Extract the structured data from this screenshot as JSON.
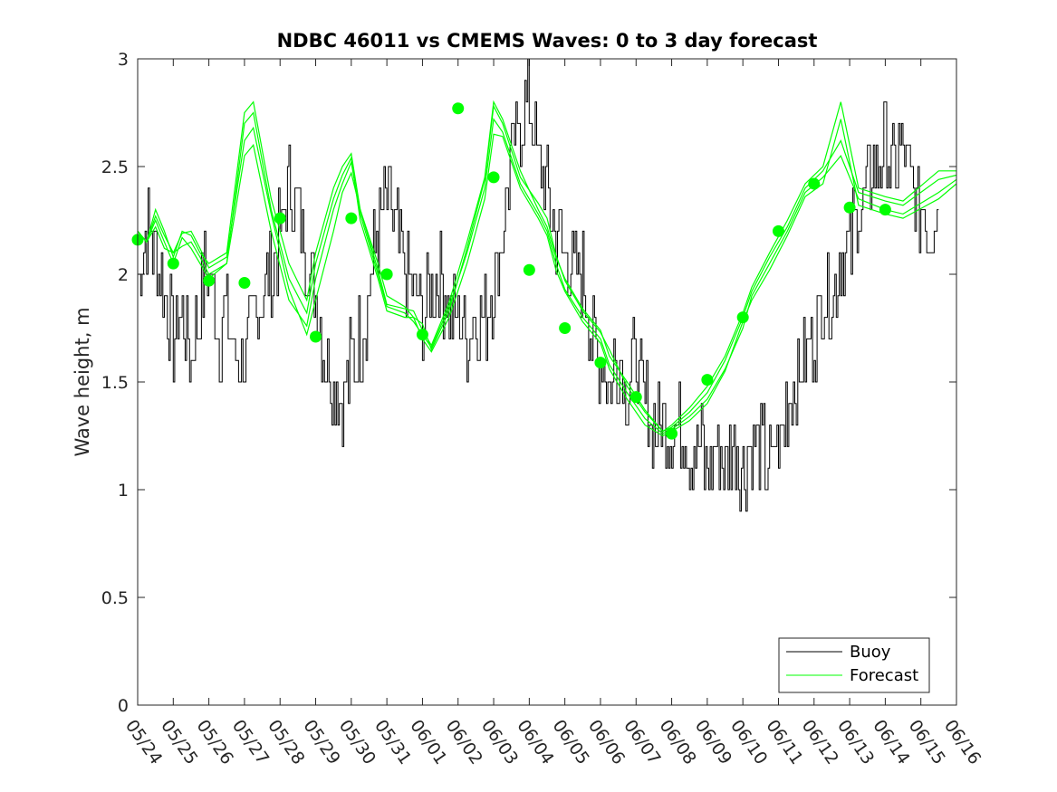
{
  "chart_data": {
    "type": "line",
    "title": "NDBC 46011 vs CMEMS Waves: 0 to 3 day forecast",
    "xlabel": "",
    "ylabel": "Wave height, m",
    "ylim": [
      0,
      3
    ],
    "yticks": [
      "0",
      "0.5",
      "1",
      "1.5",
      "2",
      "2.5",
      "3"
    ],
    "xlim": [
      "05/24",
      "06/16"
    ],
    "xticks": [
      "05/24",
      "05/25",
      "05/26",
      "05/27",
      "05/28",
      "05/29",
      "05/30",
      "05/31",
      "06/01",
      "06/02",
      "06/03",
      "06/04",
      "06/05",
      "06/06",
      "06/07",
      "06/08",
      "06/09",
      "06/10",
      "06/11",
      "06/12",
      "06/13",
      "06/14",
      "06/15",
      "06/16"
    ],
    "grid": false,
    "legend": {
      "position": "bottom-right",
      "entries": [
        "Buoy",
        "Forecast"
      ]
    },
    "colors": {
      "buoy": "#000000",
      "forecast": "#00ff00"
    },
    "buoy": {
      "name": "Buoy",
      "days": [
        0.0,
        0.25,
        0.5,
        0.75,
        1.0,
        1.25,
        1.5,
        1.75,
        2.0,
        2.25,
        2.5,
        2.75,
        3.0,
        3.25,
        3.5,
        3.75,
        4.0,
        4.25,
        4.5,
        4.75,
        5.0,
        5.25,
        5.5,
        5.75,
        6.0,
        6.25,
        6.5,
        6.75,
        7.0,
        7.25,
        7.5,
        7.75,
        8.0,
        8.25,
        8.5,
        8.75,
        9.0,
        9.25,
        9.5,
        9.75,
        10.0,
        10.25,
        10.5,
        10.75,
        11.0,
        11.25,
        11.5,
        11.75,
        12.0,
        12.25,
        12.5,
        12.75,
        13.0,
        13.25,
        13.5,
        13.75,
        14.0,
        14.25,
        14.5,
        14.75,
        15.0,
        15.25,
        15.5,
        15.75,
        16.0,
        16.25,
        16.5,
        16.75,
        17.0,
        17.25,
        17.5,
        17.75,
        18.0,
        18.25,
        18.5,
        18.75,
        19.0,
        19.25,
        19.5,
        19.75,
        20.0,
        20.25,
        20.5,
        20.75,
        21.0,
        21.25,
        21.5,
        21.75,
        22.0,
        22.25,
        22.5
      ],
      "values": [
        2.0,
        2.2,
        2.1,
        1.9,
        1.7,
        1.8,
        1.6,
        1.9,
        2.0,
        1.7,
        1.8,
        1.6,
        1.6,
        1.8,
        1.9,
        2.0,
        2.2,
        2.4,
        2.3,
        2.1,
        1.9,
        1.6,
        1.5,
        1.4,
        1.6,
        1.7,
        1.9,
        2.2,
        2.3,
        2.2,
        2.0,
        1.9,
        1.8,
        1.9,
        2.0,
        1.8,
        1.8,
        1.7,
        1.8,
        1.8,
        1.9,
        2.2,
        2.5,
        2.7,
        2.8,
        2.5,
        2.4,
        2.2,
        2.1,
        2.0,
        2.0,
        1.7,
        1.6,
        1.5,
        1.6,
        1.5,
        1.6,
        1.4,
        1.3,
        1.3,
        1.3,
        1.3,
        1.2,
        1.2,
        1.1,
        1.2,
        1.1,
        1.2,
        1.1,
        1.2,
        1.2,
        1.1,
        1.2,
        1.4,
        1.5,
        1.6,
        1.7,
        1.9,
        1.9,
        2.1,
        2.1,
        2.3,
        2.4,
        2.5,
        2.6,
        2.5,
        2.6,
        2.4,
        2.3,
        2.2,
        2.3
      ]
    },
    "forecast_runs": [
      {
        "name": "Forecast",
        "values": [
          2.2,
          2.15,
          2.27,
          2.18,
          2.1,
          2.19,
          2.2,
          2.12,
          2.03,
          2.08,
          2.62,
          2.68,
          2.28,
          1.93,
          1.72,
          1.88,
          2.2,
          2.38,
          2.47,
          2.3,
          2.05,
          1.9,
          1.85,
          1.8,
          1.77,
          1.65,
          1.83,
          2.12,
          2.44,
          2.78,
          2.7,
          2.45,
          2.33,
          2.26,
          2.09,
          1.97,
          1.83,
          1.73,
          1.65,
          1.48,
          1.36,
          1.27,
          1.29,
          1.36,
          1.45,
          1.6,
          1.8,
          1.92,
          2.08,
          2.22,
          2.4,
          2.48,
          2.62,
          2.38,
          2.34,
          2.32,
          2.44,
          2.46
        ]
      },
      {
        "name": "Forecast",
        "values": [
          2.2,
          2.15,
          2.22,
          2.12,
          2.1,
          2.13,
          2.15,
          2.08,
          2.0,
          2.05,
          2.55,
          2.6,
          2.2,
          1.88,
          1.76,
          1.98,
          2.3,
          2.42,
          2.52,
          2.28,
          2.0,
          1.85,
          1.82,
          1.78,
          1.72,
          1.66,
          1.85,
          2.1,
          2.4,
          2.72,
          2.66,
          2.42,
          2.28,
          2.2,
          2.05,
          1.93,
          1.8,
          1.7,
          1.58,
          1.45,
          1.33,
          1.26,
          1.28,
          1.34,
          1.42,
          1.56,
          1.75,
          1.9,
          2.05,
          2.2,
          2.38,
          2.45,
          2.55,
          2.35,
          2.3,
          2.28,
          2.38,
          2.44
        ]
      },
      {
        "name": "Forecast",
        "values": [
          2.2,
          2.15,
          2.25,
          2.15,
          2.05,
          2.17,
          2.12,
          2.05,
          1.98,
          2.05,
          2.7,
          2.75,
          2.3,
          1.98,
          1.82,
          2.05,
          2.35,
          2.46,
          2.54,
          2.25,
          1.98,
          1.83,
          1.8,
          1.8,
          1.7,
          1.64,
          1.8,
          2.05,
          2.35,
          2.65,
          2.64,
          2.4,
          2.26,
          2.18,
          2.02,
          1.92,
          1.78,
          1.68,
          1.56,
          1.42,
          1.3,
          1.25,
          1.27,
          1.32,
          1.4,
          1.55,
          1.78,
          1.88,
          2.02,
          2.18,
          2.36,
          2.42,
          2.72,
          2.32,
          2.28,
          2.26,
          2.35,
          2.42
        ]
      },
      {
        "name": "Forecast",
        "values": [
          2.2,
          2.15,
          2.3,
          2.2,
          2.08,
          2.2,
          2.18,
          2.1,
          2.05,
          2.1,
          2.75,
          2.8,
          2.35,
          2.05,
          1.88,
          2.1,
          2.4,
          2.5,
          2.56,
          2.3,
          2.02,
          1.86,
          1.84,
          1.83,
          1.74,
          1.67,
          1.87,
          2.15,
          2.45,
          2.8,
          2.72,
          2.48,
          2.3,
          2.22,
          2.08,
          1.98,
          1.84,
          1.74,
          1.62,
          1.5,
          1.37,
          1.27,
          1.3,
          1.38,
          1.48,
          1.62,
          1.82,
          1.94,
          2.1,
          2.25,
          2.42,
          2.5,
          2.8,
          2.4,
          2.36,
          2.34,
          2.48,
          2.48
        ]
      }
    ],
    "forecast_days": [
      0.0,
      0.25,
      0.5,
      0.75,
      1.0,
      1.25,
      1.5,
      1.75,
      2.0,
      2.5,
      3.0,
      3.25,
      3.75,
      4.25,
      4.75,
      5.0,
      5.5,
      5.75,
      6.0,
      6.25,
      6.75,
      7.0,
      7.5,
      7.75,
      8.0,
      8.25,
      8.75,
      9.25,
      9.75,
      10.0,
      10.25,
      10.75,
      11.25,
      11.5,
      11.75,
      12.0,
      12.5,
      13.0,
      13.25,
      13.75,
      14.25,
      14.75,
      15.0,
      15.5,
      16.0,
      16.5,
      17.0,
      17.25,
      17.75,
      18.25,
      18.75,
      19.25,
      19.75,
      20.25,
      21.0,
      21.5,
      22.5,
      23.0
    ],
    "daily_points": {
      "name": "Forecast",
      "days": [
        0.0,
        1.0,
        2.0,
        3.0,
        4.0,
        5.0,
        6.0,
        7.0,
        8.0,
        9.0,
        10.0,
        11.0,
        12.0,
        13.0,
        14.0,
        15.0,
        16.0,
        17.0,
        18.0,
        19.0,
        20.0,
        21.0
      ],
      "values": [
        2.16,
        2.05,
        1.97,
        1.96,
        2.26,
        1.71,
        2.26,
        2.0,
        1.72,
        2.77,
        2.45,
        2.02,
        1.75,
        1.59,
        1.43,
        1.26,
        1.51,
        1.8,
        2.2,
        2.42,
        2.31,
        2.3
      ]
    }
  }
}
